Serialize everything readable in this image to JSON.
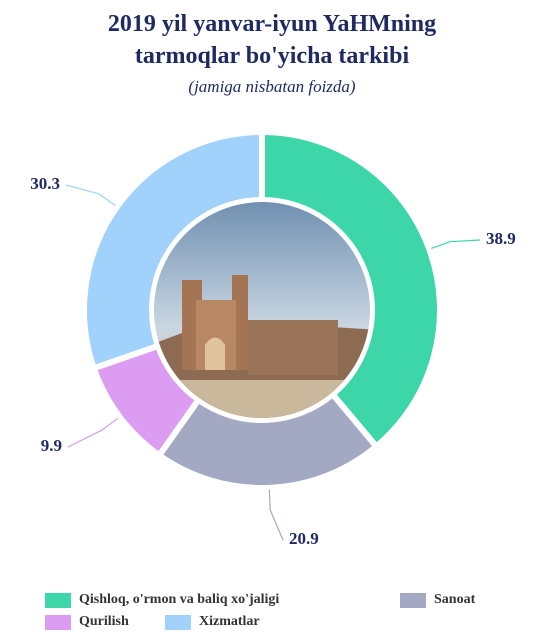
{
  "chart_data": {
    "type": "donut",
    "title": "2019 yil yanvar-iyun YaHMning tarmoqlar bo'yicha tarkibi",
    "subtitle": "(jamiga nisbatan foizda)",
    "categories": [
      "Qishloq, o'rmon va baliq xo'jaligi",
      "Sanoat",
      "Qurilish",
      "Xizmatlar"
    ],
    "values": [
      38.9,
      20.9,
      9.9,
      30.3
    ],
    "colors": [
      "#3dd6a8",
      "#a3a9c2",
      "#dc9cf2",
      "#a0d2fb"
    ]
  }
}
